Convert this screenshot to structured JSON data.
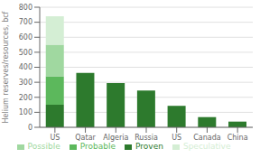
{
  "chart_data": {
    "type": "bar",
    "stacked": true,
    "ylabel": "Helium reserves/resources, bcf",
    "categories": [
      "US",
      "Qatar",
      "Algeria",
      "Russia",
      "US",
      "Canada",
      "China"
    ],
    "series": [
      {
        "name": "Proven",
        "color": "#2d7a2d",
        "values": [
          150,
          362,
          295,
          245,
          143,
          68,
          38
        ]
      },
      {
        "name": "Probable",
        "color": "#5cb85c",
        "values": [
          190,
          0,
          0,
          0,
          0,
          0,
          0
        ]
      },
      {
        "name": "Possible",
        "color": "#a0d8a0",
        "values": [
          210,
          0,
          0,
          0,
          0,
          0,
          0
        ]
      },
      {
        "name": "Speculative",
        "color": "#d4eed4",
        "values": [
          190,
          0,
          0,
          0,
          0,
          0,
          0
        ]
      }
    ],
    "ylim": [
      0,
      800
    ],
    "yticks": [
      0,
      100,
      200,
      300,
      400,
      500,
      600,
      700,
      800
    ],
    "grid": true,
    "legend": "bottom"
  }
}
